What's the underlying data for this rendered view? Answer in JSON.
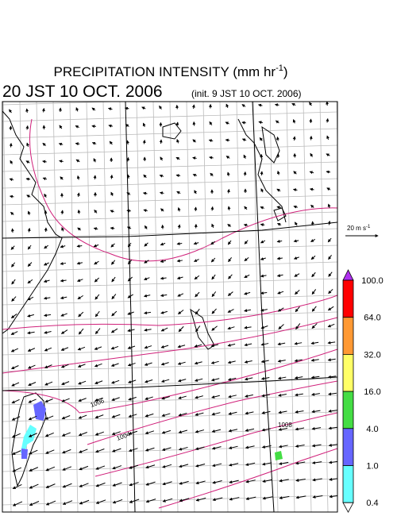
{
  "header": {
    "title": "PRECIPITATION INTENSITY (mm hr",
    "title_exponent": "-1",
    "title_close": ")",
    "valid_time": "20 JST 10 OCT. 2006",
    "init_time": "(init. 9 JST 10 OCT. 2006)"
  },
  "vector_scale": {
    "label": "20 m s",
    "exponent": "-1"
  },
  "isobar_labels": [
    "1006",
    "1004",
    "1008"
  ],
  "colorbar": {
    "labels": [
      "100.0",
      "64.0",
      "32.0",
      "16.0",
      "4.0",
      "1.0",
      "0.4"
    ],
    "colors": [
      "#ff0000",
      "#ff9933",
      "#ffff66",
      "#44dd44",
      "#6666ff",
      "#66ffff"
    ],
    "over_color": "#b030f0",
    "under_color": "#ffffff"
  }
}
